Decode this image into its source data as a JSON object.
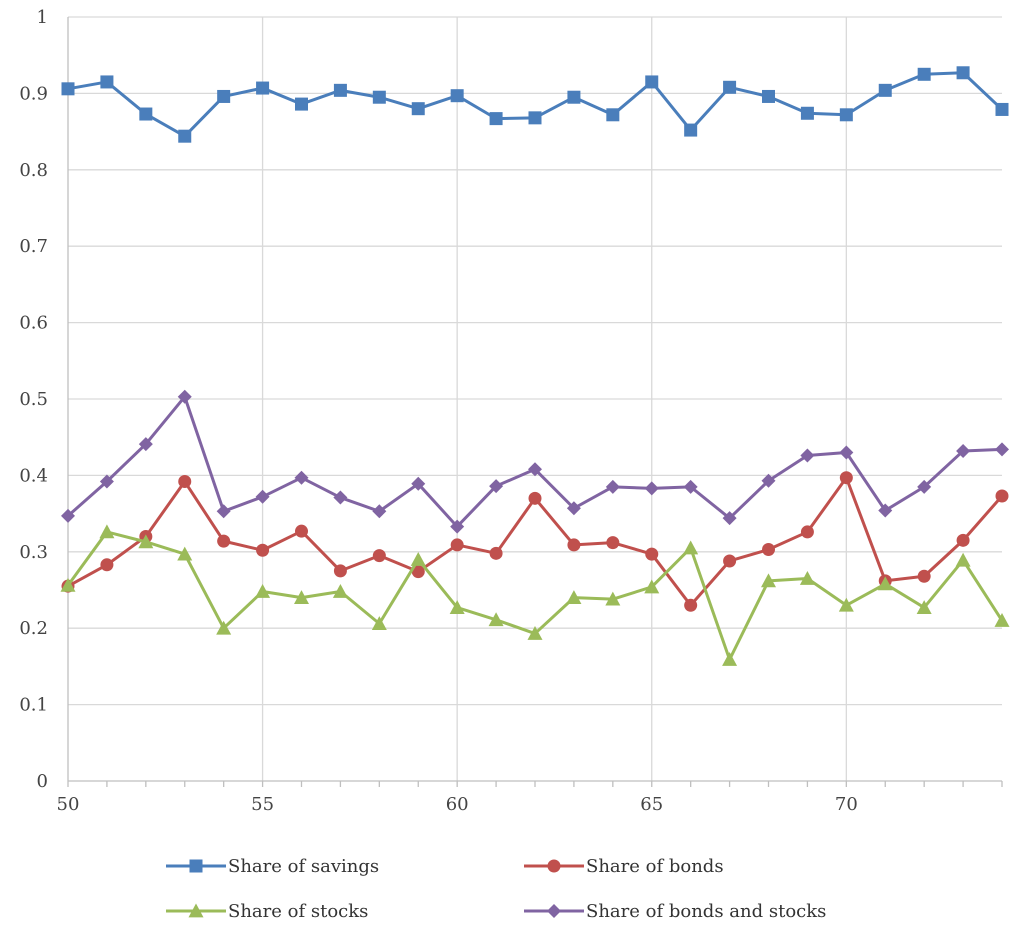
{
  "chart_data": {
    "type": "line",
    "title": "",
    "xlabel": "",
    "ylabel": "",
    "xlim": [
      50,
      74
    ],
    "ylim": [
      0,
      1
    ],
    "x_ticks": [
      50,
      55,
      60,
      65,
      70
    ],
    "y_ticks": [
      0,
      0.1,
      0.2,
      0.3,
      0.4,
      0.5,
      0.6,
      0.7,
      0.8,
      0.9,
      1
    ],
    "x_tick_labels": [
      "50",
      "55",
      "60",
      "65",
      "70"
    ],
    "y_tick_labels": [
      "0",
      "0.1",
      "0.2",
      "0.3",
      "0.4",
      "0.5",
      "0.6",
      "0.7",
      "0.8",
      "0.9",
      "1"
    ],
    "grid": true,
    "legend_position": "bottom",
    "x": [
      50,
      51,
      52,
      53,
      54,
      55,
      56,
      57,
      58,
      59,
      60,
      61,
      62,
      63,
      64,
      65,
      66,
      67,
      68,
      69,
      70,
      71,
      72,
      73,
      74
    ],
    "series": [
      {
        "name": "Share of savings",
        "color": "#4a7ebb",
        "marker": "square",
        "values": [
          0.906,
          0.915,
          0.873,
          0.844,
          0.896,
          0.907,
          0.886,
          0.904,
          0.895,
          0.88,
          0.897,
          0.867,
          0.868,
          0.895,
          0.872,
          0.915,
          0.852,
          0.908,
          0.896,
          0.874,
          0.872,
          0.904,
          0.925,
          0.927,
          0.879
        ]
      },
      {
        "name": "Share of bonds",
        "color": "#c0504d",
        "marker": "circle",
        "values": [
          0.255,
          0.283,
          0.32,
          0.392,
          0.314,
          0.302,
          0.327,
          0.275,
          0.295,
          0.274,
          0.309,
          0.298,
          0.37,
          0.309,
          0.312,
          0.297,
          0.23,
          0.288,
          0.303,
          0.326,
          0.397,
          0.262,
          0.268,
          0.315,
          0.373
        ]
      },
      {
        "name": "Share of stocks",
        "color": "#9bbb59",
        "marker": "triangle",
        "values": [
          0.256,
          0.326,
          0.313,
          0.297,
          0.2,
          0.248,
          0.24,
          0.248,
          0.206,
          0.29,
          0.227,
          0.211,
          0.193,
          0.24,
          0.238,
          0.254,
          0.305,
          0.159,
          0.262,
          0.265,
          0.23,
          0.258,
          0.227,
          0.289,
          0.21
        ]
      },
      {
        "name": "Share of bonds and stocks",
        "color": "#8064a2",
        "marker": "diamond",
        "values": [
          0.347,
          0.392,
          0.441,
          0.503,
          0.353,
          0.372,
          0.397,
          0.371,
          0.353,
          0.389,
          0.333,
          0.386,
          0.408,
          0.357,
          0.385,
          0.383,
          0.385,
          0.344,
          0.393,
          0.426,
          0.43,
          0.354,
          0.385,
          0.432,
          0.434
        ]
      }
    ]
  }
}
